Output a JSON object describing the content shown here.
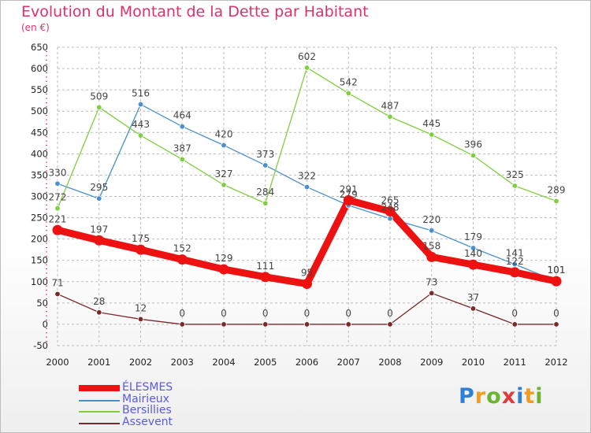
{
  "header": {
    "title": "Evolution du Montant de la Dette par Habitant",
    "subtitle": "(en €)"
  },
  "colors": {
    "title": "#e0306a",
    "grid": "#bbbbbb",
    "axis_tick_marks": "#e0306a"
  },
  "logo": {
    "letters": [
      "P",
      "r",
      "o",
      "x",
      "i",
      "t",
      "i"
    ],
    "colors": [
      "#2f7fd6",
      "#f39c1f",
      "#6ab42f",
      "#e23a3a",
      "#2f7fd6",
      "#f39c1f",
      "#6ab42f"
    ]
  },
  "chart_data": {
    "type": "line",
    "title": "Evolution du Montant de la Dette par Habitant",
    "subtitle": "(en €)",
    "x": [
      "2000",
      "2001",
      "2002",
      "2003",
      "2004",
      "2005",
      "2006",
      "2007",
      "2008",
      "2009",
      "2010",
      "2011",
      "2012"
    ],
    "ylim": [
      -50,
      650
    ],
    "yticks": [
      -50,
      0,
      50,
      100,
      150,
      200,
      250,
      300,
      350,
      400,
      450,
      500,
      550,
      600,
      650
    ],
    "grid": true,
    "legend_position": "bottom-left",
    "series": [
      {
        "name": "Mairieux",
        "color": "#4a90d0",
        "values": [
          330,
          295,
          516,
          464,
          420,
          373,
          322,
          279,
          248,
          220,
          179,
          141,
          101
        ],
        "labels": [
          "330",
          "295",
          "516",
          "464",
          "420",
          "373",
          "322",
          "279",
          "248",
          "220",
          "179",
          "141",
          "101"
        ]
      },
      {
        "name": "Bersillies",
        "color": "#7fcf3f",
        "values": [
          272,
          509,
          443,
          387,
          327,
          284,
          602,
          542,
          487,
          445,
          396,
          325,
          289
        ],
        "labels": [
          "272",
          "509",
          "443",
          "387",
          "327",
          "284",
          "602",
          "542",
          "487",
          "445",
          "396",
          "325",
          "289"
        ]
      },
      {
        "name": "Assevent",
        "color": "#7a2a2a",
        "values": [
          71,
          28,
          12,
          0,
          0,
          0,
          0,
          0,
          0,
          73,
          37,
          0,
          0
        ],
        "labels": [
          "71",
          "28",
          "12",
          "0",
          "0",
          "0",
          "0",
          "0",
          "0",
          "73",
          "37",
          "0",
          "0"
        ]
      },
      {
        "name": "ÉLESMES",
        "color": "#ee1111",
        "values": [
          221,
          197,
          175,
          152,
          129,
          111,
          95,
          291,
          265,
          158,
          140,
          122,
          101
        ],
        "labels": [
          "221",
          "197",
          "175",
          "152",
          "129",
          "111",
          "95",
          "291",
          "265",
          "158",
          "140",
          "122",
          "101"
        ]
      }
    ],
    "legend_order": [
      "ÉLESMES",
      "Mairieux",
      "Bersillies",
      "Assevent"
    ]
  }
}
